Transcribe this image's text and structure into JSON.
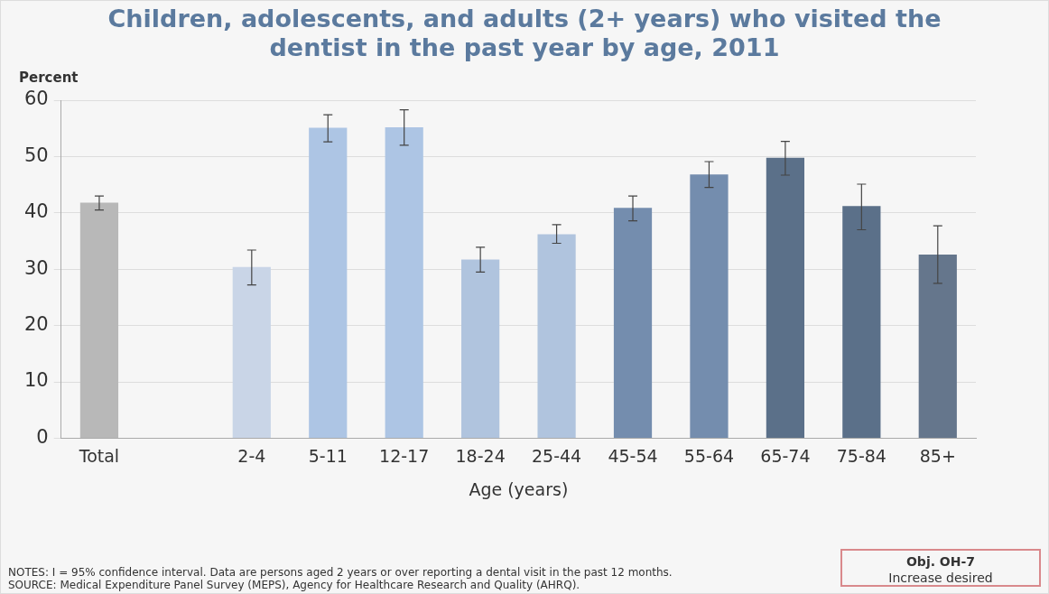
{
  "chart_data": {
    "type": "bar",
    "title": "Children, adolescents, and adults (2+ years) who visited the dentist in the past year by age, 2011",
    "xlabel": "Age (years)",
    "ylabel": "Percent",
    "categories": [
      "Total",
      null,
      "2-4",
      "5-11",
      "12-17",
      "18-24",
      "25-44",
      "45-54",
      "55-64",
      "65-74",
      "75-84",
      "85+"
    ],
    "values": [
      41.8,
      null,
      30.4,
      55.1,
      55.2,
      31.7,
      36.2,
      40.9,
      46.8,
      49.8,
      41.2,
      32.6
    ],
    "colors": [
      "#b8b8b8",
      "#b8b8b8",
      "#c9d5e7",
      "#adc5e4",
      "#adc5e4",
      "#b0c4de",
      "#b0c4de",
      "#748dae",
      "#748dae",
      "#5b7089",
      "#5b7089",
      "#65768c"
    ],
    "errors": [
      [
        40.5,
        43.0
      ],
      null,
      [
        27.2,
        33.4
      ],
      [
        52.6,
        57.4
      ],
      [
        52.0,
        58.3
      ],
      [
        29.5,
        33.9
      ],
      [
        34.6,
        37.9
      ],
      [
        38.6,
        43.0
      ],
      [
        44.5,
        49.1
      ],
      [
        46.7,
        52.7
      ],
      [
        37.0,
        45.1
      ],
      [
        27.5,
        37.7
      ]
    ],
    "ylim": [
      0,
      60
    ],
    "yticks": [
      0,
      10,
      20,
      30,
      40,
      50,
      60
    ],
    "grid": "y",
    "annotations": [
      "NOTES: I = 95% confidence interval. Data are persons aged 2 years or over reporting a dental visit in the past 12 months.",
      "SOURCE: Medical Expenditure Panel Survey (MEPS), Agency for Healthcare Research and Quality (AHRQ).",
      "Obj. OH-7",
      "Increase desired"
    ]
  }
}
